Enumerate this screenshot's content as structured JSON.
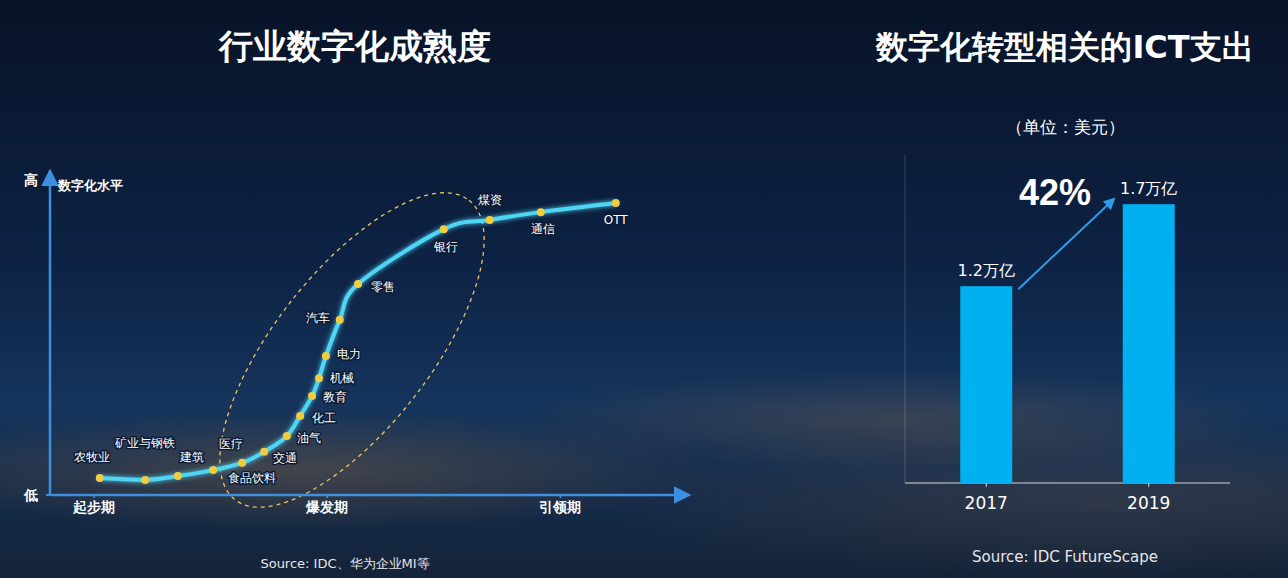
{
  "chart_data": [
    {
      "type": "line",
      "title": "行业数字化成熟度",
      "ylabel": "数字化水平",
      "source": "Source: IDC、华为企业MI等",
      "x": [
        7.9,
        15.1,
        20.3,
        25.9,
        30.5,
        34.0,
        37.6,
        39.7,
        41.6,
        42.7,
        43.8,
        46.0,
        48.9,
        62.5,
        69.8,
        77.9,
        89.8
      ],
      "series": [
        {
          "values": [
            5.4,
            4.8,
            6.0,
            7.9,
            10.2,
            13.7,
            18.7,
            25.1,
            31.4,
            37.1,
            44.1,
            55.6,
            67.0,
            84.4,
            87.3,
            89.8,
            92.7
          ],
          "labels": [
            "农牧业",
            "矿业与钢铁",
            "建筑",
            "医疗",
            "食品饮料",
            "交通",
            "油气",
            "化工",
            "教育",
            "机械",
            "电力",
            "汽车",
            "零售",
            "银行",
            "煤资",
            "通信",
            "OTT"
          ],
          "color": "#4fd6f5",
          "marker": "circle"
        }
      ],
      "xlim": [
        0,
        100
      ],
      "xticks": [
        {
          "value": 7,
          "label": "起步期"
        },
        {
          "value": 44,
          "label": "爆发期"
        },
        {
          "value": 81,
          "label": "引领期"
        }
      ],
      "ylim": [
        0,
        100
      ],
      "yticks": [
        {
          "value": 0,
          "label": "低"
        },
        {
          "value": 100,
          "label": "高"
        }
      ],
      "grid": false
    },
    {
      "type": "bar",
      "title": "数字化转型相关的ICT支出",
      "subtitle": "（单位：美元）",
      "source": "Source: IDC FutureScape",
      "annotation": "42%",
      "categories": [
        "2017",
        "2019"
      ],
      "values": [
        1.2,
        1.7
      ],
      "value_labels": [
        "1.2万亿",
        "1.7万亿"
      ],
      "color": "#00b0f0",
      "ylim": [
        0,
        2
      ],
      "data_labels": true,
      "tick_labels": "x",
      "grid": false
    }
  ]
}
